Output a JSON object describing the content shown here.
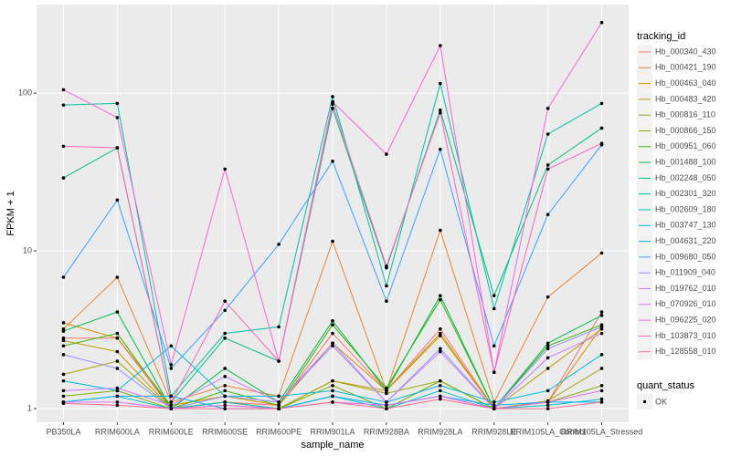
{
  "chart_data": {
    "type": "line",
    "log_y": true,
    "grid": true,
    "x_label": "sample_name",
    "y_label": "FPKM + 1",
    "categories": [
      "PB350LA",
      "RRIM600LA",
      "RRIM600LE",
      "RRIM600SE",
      "RRIM600PE",
      "RRIM901LA",
      "RRIM928BA",
      "RRIM928LA",
      "RRIM928LE",
      "RRIM105LA_Control",
      "RRIM105LA_Stressed"
    ],
    "ylim": [
      0.82,
      364
    ],
    "yticks": [
      1,
      10,
      100
    ],
    "legend_title": "tracking_id",
    "legend_position": "right",
    "point_legend": {
      "title": "quant_status",
      "label": "OK",
      "color": "#000000"
    },
    "series": [
      {
        "name": "Hb_000340_430",
        "color": "#F8766D",
        "values": [
          2.8,
          2.8,
          1.0,
          1.1,
          1.05,
          3.0,
          1.3,
          3.2,
          1.0,
          1.1,
          4.1
        ]
      },
      {
        "name": "Hb_000421_190",
        "color": "#EA8331",
        "values": [
          3.2,
          6.8,
          1.1,
          1.4,
          1.2,
          11.5,
          1.3,
          13.5,
          1.1,
          5.1,
          9.7
        ]
      },
      {
        "name": "Hb_000463_040",
        "color": "#D89000",
        "values": [
          3.5,
          2.8,
          1.05,
          1.2,
          1.05,
          2.6,
          1.3,
          3.0,
          1.0,
          1.1,
          3.3
        ]
      },
      {
        "name": "Hb_000483_420",
        "color": "#C09B00",
        "values": [
          2.7,
          2.3,
          1.0,
          1.1,
          1.0,
          1.5,
          1.3,
          2.9,
          1.0,
          1.8,
          3.2
        ]
      },
      {
        "name": "Hb_000816_110",
        "color": "#A3A500",
        "values": [
          1.65,
          2.0,
          1.0,
          1.05,
          1.0,
          1.5,
          1.25,
          1.5,
          1.0,
          1.12,
          1.8
        ]
      },
      {
        "name": "Hb_000866_150",
        "color": "#7CAE00",
        "values": [
          1.2,
          1.3,
          1.0,
          1.1,
          1.0,
          1.4,
          1.0,
          1.5,
          1.0,
          1.1,
          1.4
        ]
      },
      {
        "name": "Hb_000951_060",
        "color": "#39B600",
        "values": [
          2.5,
          3.0,
          1.0,
          1.3,
          1.05,
          3.4,
          1.35,
          4.9,
          1.0,
          2.5,
          3.4
        ]
      },
      {
        "name": "Hb_001488_100",
        "color": "#00BB4E",
        "values": [
          3.1,
          4.1,
          1.0,
          1.8,
          1.1,
          3.6,
          1.3,
          5.2,
          1.0,
          2.6,
          3.9
        ]
      },
      {
        "name": "Hb_002248_050",
        "color": "#00BF7D",
        "values": [
          29,
          45,
          1.1,
          2.8,
          2.0,
          80,
          7.8,
          78,
          5.2,
          35,
          60
        ]
      },
      {
        "name": "Hb_002301_320",
        "color": "#00C1A3",
        "values": [
          84,
          86,
          1.2,
          3.0,
          3.3,
          95,
          6.0,
          115,
          4.3,
          55,
          86
        ]
      },
      {
        "name": "Hb_002609_180",
        "color": "#00BFC4",
        "values": [
          1.1,
          1.2,
          1.0,
          1.1,
          1.0,
          1.2,
          1.0,
          1.3,
          1.0,
          1.05,
          1.15
        ]
      },
      {
        "name": "Hb_003747_130",
        "color": "#00BAE0",
        "values": [
          1.5,
          1.3,
          2.5,
          1.2,
          1.2,
          1.3,
          1.1,
          1.4,
          1.1,
          1.3,
          2.2
        ]
      },
      {
        "name": "Hb_004631_220",
        "color": "#00B0F6",
        "values": [
          1.1,
          1.2,
          1.2,
          1.0,
          1.0,
          1.2,
          1.05,
          1.2,
          1.05,
          1.1,
          1.1
        ]
      },
      {
        "name": "Hb_009680_050",
        "color": "#35A2FF",
        "values": [
          6.8,
          21,
          1.8,
          4.2,
          11,
          37,
          4.8,
          44,
          2.5,
          17,
          47
        ]
      },
      {
        "name": "Hb_011909_040",
        "color": "#9590FF",
        "values": [
          2.2,
          1.8,
          1.0,
          1.2,
          1.1,
          2.5,
          1.1,
          2.4,
          1.0,
          2.4,
          3.3
        ]
      },
      {
        "name": "Hb_019762_010",
        "color": "#C77CFF",
        "values": [
          1.3,
          1.35,
          1.05,
          1.6,
          1.1,
          2.6,
          1.1,
          2.3,
          1.0,
          2.1,
          3.0
        ]
      },
      {
        "name": "Hb_070926_010",
        "color": "#E76BF3",
        "values": [
          1.1,
          1.1,
          1.0,
          1.05,
          1.0,
          1.1,
          1.05,
          1.2,
          1.0,
          1.1,
          1.3
        ]
      },
      {
        "name": "Hb_096225_020",
        "color": "#FA62DB",
        "values": [
          105,
          70,
          1.9,
          33,
          2.0,
          88,
          41,
          200,
          1.7,
          80,
          280
        ]
      },
      {
        "name": "Hb_103873_010",
        "color": "#FF62BC",
        "values": [
          46,
          45,
          1.1,
          4.8,
          2.0,
          85,
          8,
          75,
          1.7,
          33,
          48
        ]
      },
      {
        "name": "Hb_128558_010",
        "color": "#FF6C91",
        "values": [
          1.08,
          1.05,
          1.0,
          1.0,
          1.0,
          1.1,
          1.0,
          1.15,
          1.0,
          1.0,
          1.1
        ]
      }
    ]
  }
}
